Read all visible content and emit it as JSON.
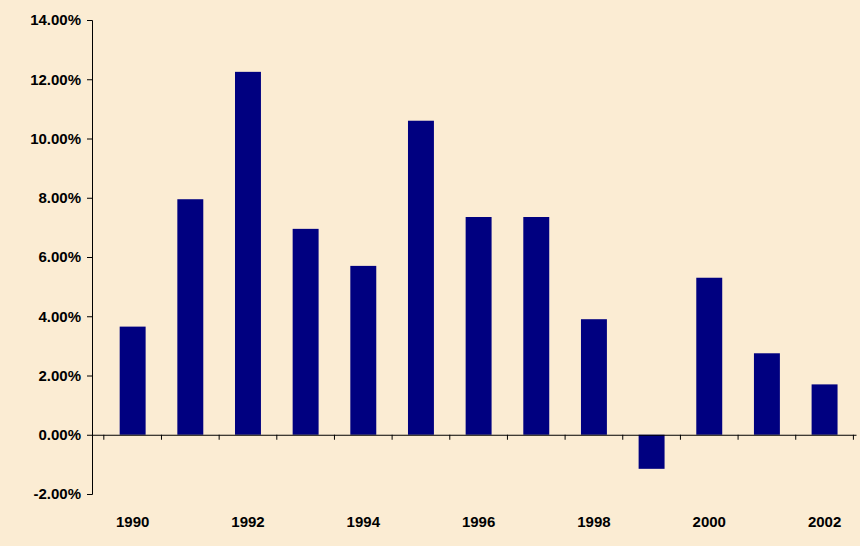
{
  "chart_data": {
    "type": "bar",
    "categories": [
      "1990",
      null,
      "1992",
      null,
      "1994",
      null,
      "1996",
      null,
      "1998",
      null,
      "2000",
      null,
      "2002"
    ],
    "values": [
      3.65,
      7.95,
      12.25,
      6.95,
      5.7,
      10.6,
      7.35,
      7.35,
      3.9,
      -1.15,
      5.3,
      2.75,
      1.7
    ],
    "color": "#000080",
    "ylim": [
      -2,
      14
    ],
    "yticks": [
      {
        "value": -2,
        "label": "-2.00%"
      },
      {
        "value": 0,
        "label": "0.00%"
      },
      {
        "value": 2,
        "label": "2.00%"
      },
      {
        "value": 4,
        "label": "4.00%"
      },
      {
        "value": 6,
        "label": "6.00%"
      },
      {
        "value": 8,
        "label": "8.00%"
      },
      {
        "value": 10,
        "label": "10.00%"
      },
      {
        "value": 12,
        "label": "12.00%"
      },
      {
        "value": 14,
        "label": "14.00%"
      }
    ],
    "grid": false
  }
}
